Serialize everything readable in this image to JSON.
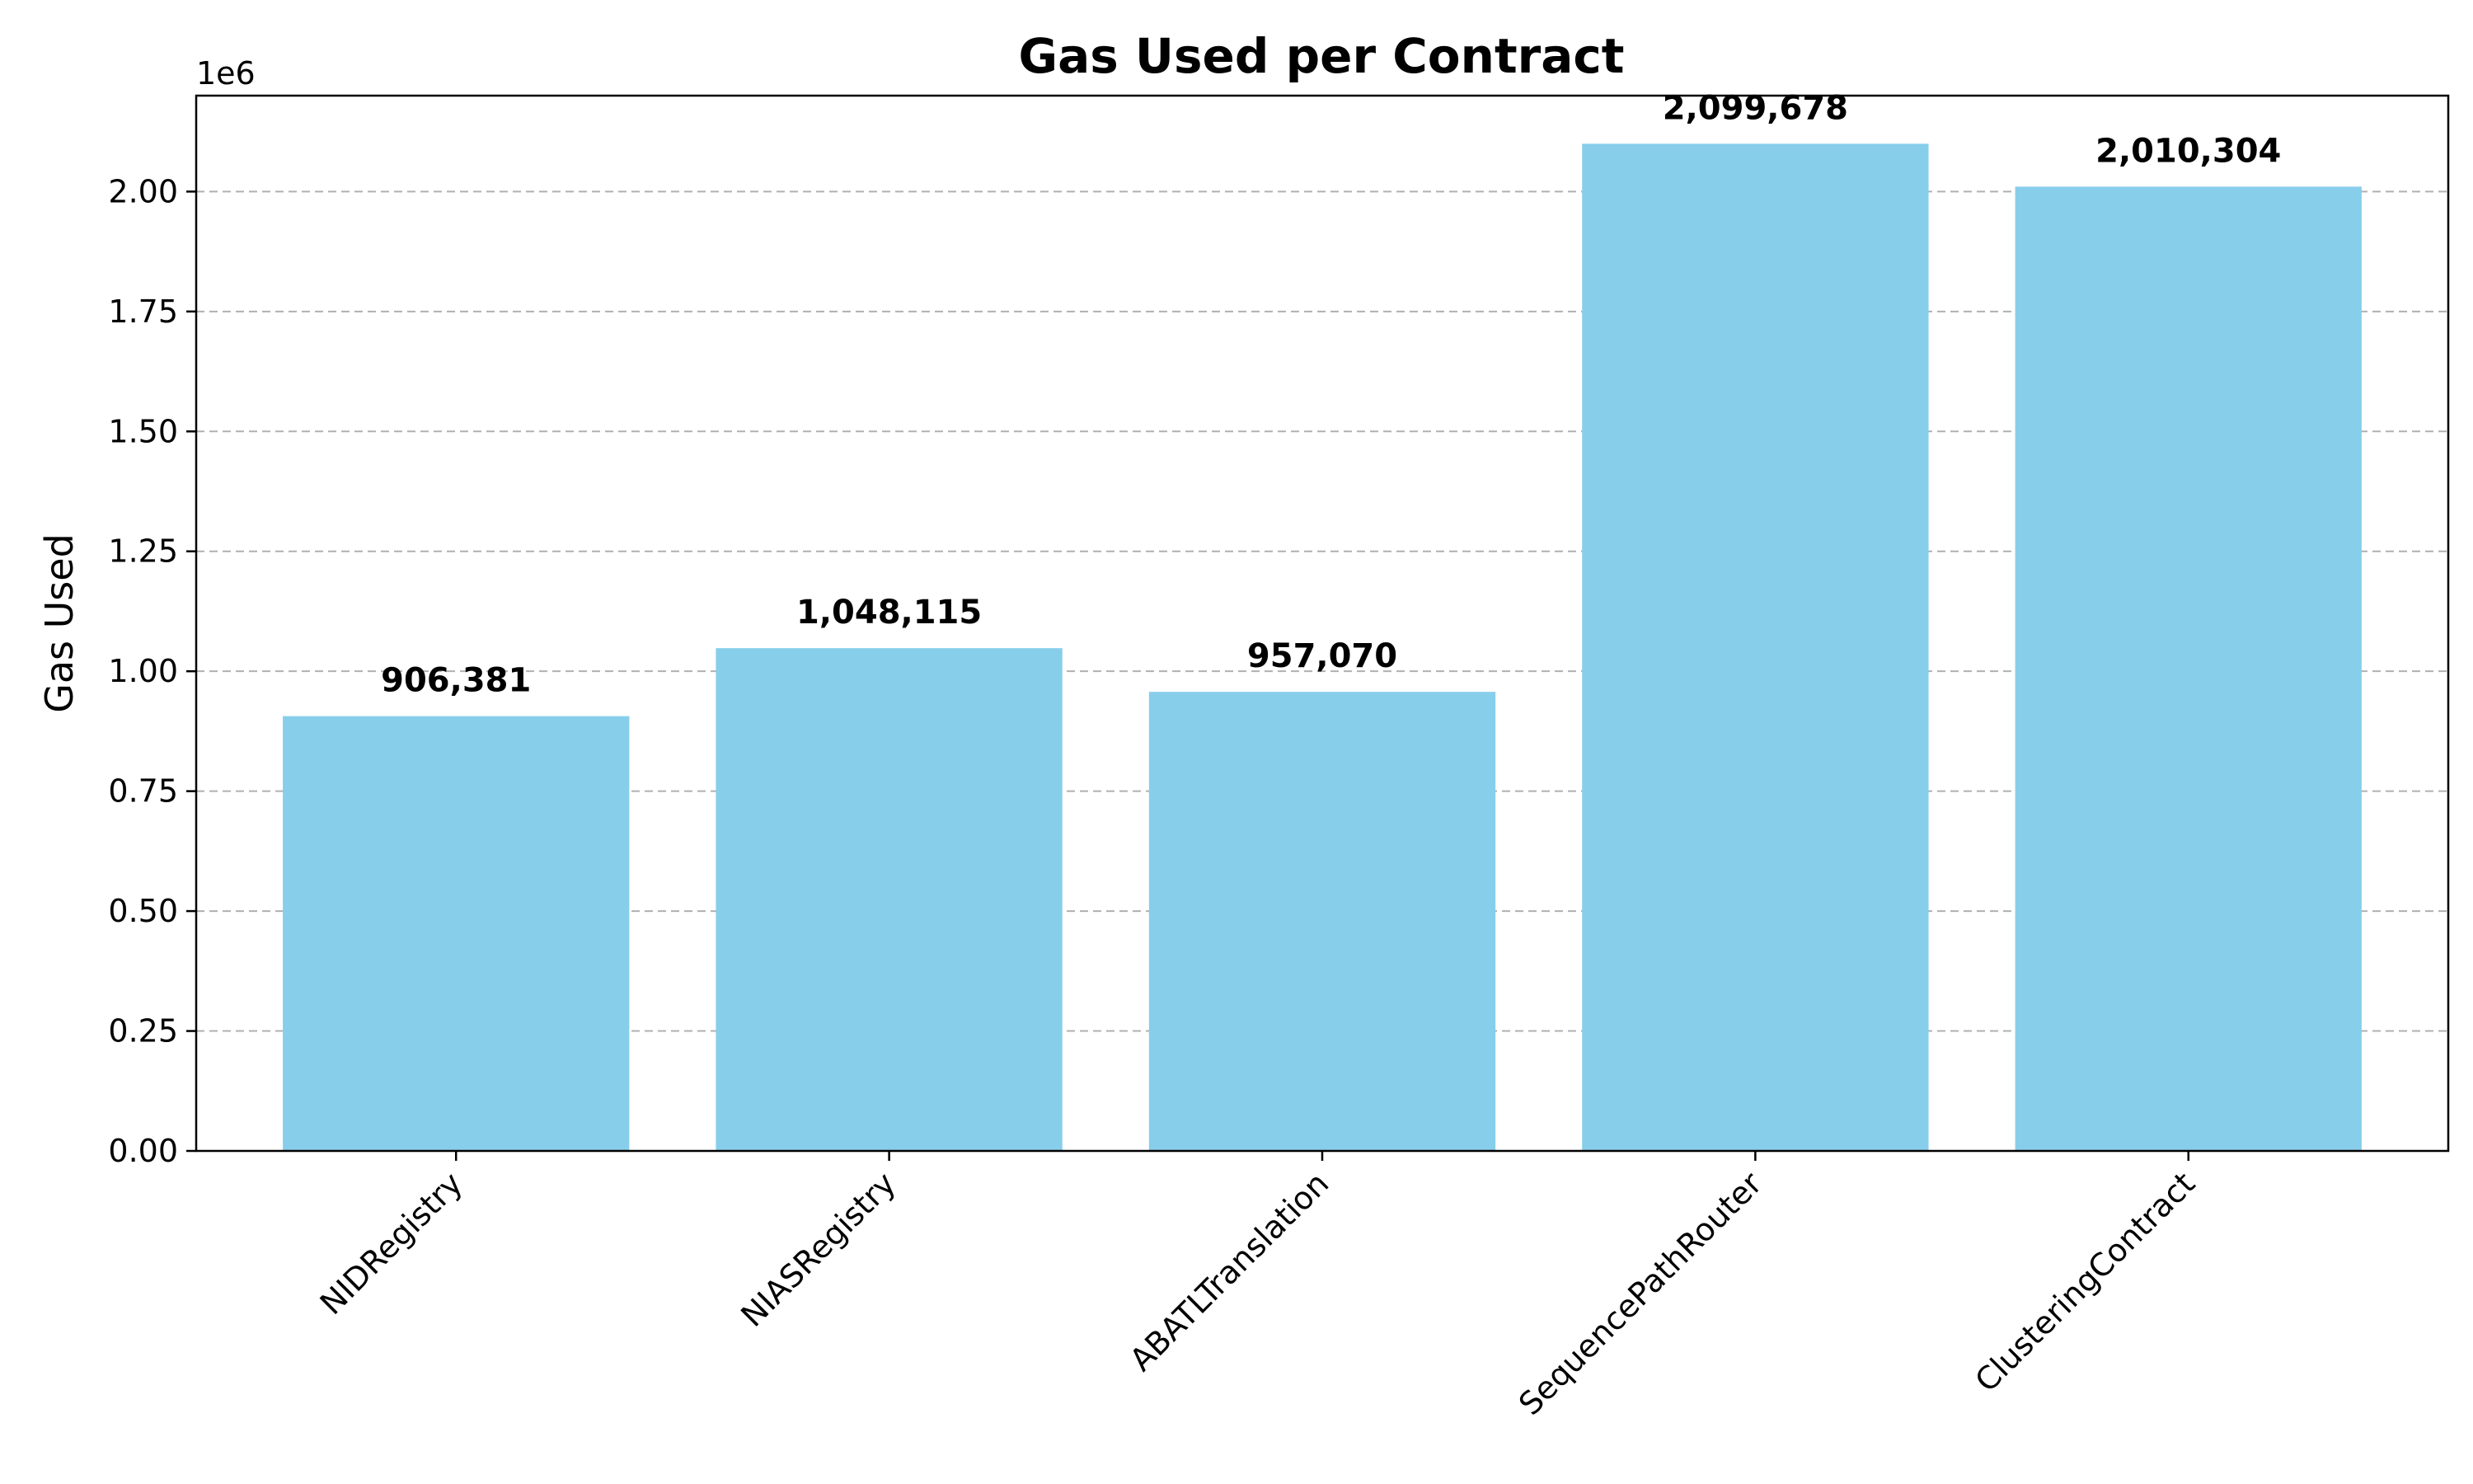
{
  "chart_data": {
    "type": "bar",
    "title": "Gas Used per Contract",
    "xlabel": "",
    "ylabel": "Gas Used",
    "y_offset_label": "1e6",
    "categories": [
      "NIDRegistry",
      "NIASRegistry",
      "ABATLTranslation",
      "SequencePathRouter",
      "ClusteringContract"
    ],
    "values": [
      906381,
      1048115,
      957070,
      2099678,
      2010304
    ],
    "data_labels": [
      "906,381",
      "1,048,115",
      "957,070",
      "2,099,678",
      "2,010,304"
    ],
    "ylim": [
      0,
      2200000
    ],
    "y_ticks": [
      0,
      250000,
      500000,
      750000,
      1000000,
      1250000,
      1500000,
      1750000,
      2000000
    ],
    "y_tick_labels": [
      "0.00",
      "0.25",
      "0.50",
      "0.75",
      "1.00",
      "1.25",
      "1.50",
      "1.75",
      "2.00"
    ],
    "grid": "y-dashed",
    "legend": "none",
    "colors": {
      "bar": "#87CEEB",
      "grid": "#b0b0b0",
      "axis": "#000000"
    }
  }
}
